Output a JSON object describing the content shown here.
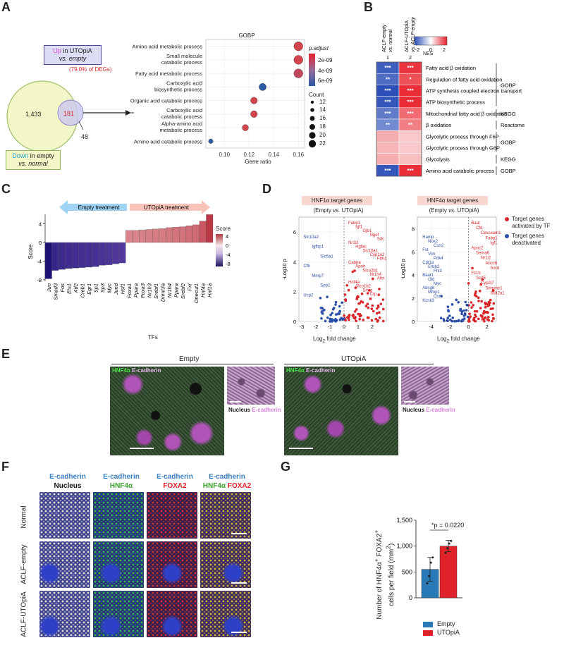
{
  "panel_labels": [
    "A",
    "B",
    "C",
    "D",
    "E",
    "F",
    "G"
  ],
  "panelA": {
    "venn_up_title": "Up in UTOpiA",
    "venn_up_sub": "vs. empty",
    "venn_up_prefix": "Up",
    "venn_up_rest": " in UTOpiA",
    "venn_pct": "(79.0% of DEGs)",
    "venn_left": "1,433",
    "venn_mid": "181",
    "venn_right": "48",
    "venn_down_prefix": "Down",
    "venn_down_rest": " in empty",
    "venn_down_sub": "vs. normal",
    "gobp_title": "GOBP",
    "xlabel": "Gene ratio",
    "legend_padj_title": "p.adjust",
    "legend_padj_ticks": [
      "2e-09",
      "4e-09",
      "6e-09"
    ],
    "legend_count_title": "Count",
    "legend_count_vals": [
      "12",
      "14",
      "16",
      "18",
      "20",
      "22"
    ]
  },
  "chart_data": [
    {
      "type": "scatter",
      "title": "GOBP",
      "xlabel": "Gene ratio",
      "xlim": [
        0.085,
        0.165
      ],
      "xticks": [
        "0.10",
        "0.12",
        "0.14",
        "0.16"
      ],
      "categories": [
        "Amino acid metabolic process",
        "Small molecule catabolic process",
        "Fatty acid metabolic process",
        "Carboxylic acid biosynthetic process",
        "Organic acid catabolic process",
        "Carboxylic acid catabolic process",
        "Alpha-amino acid metabolic process",
        "Amino acid catabolic process"
      ],
      "x": [
        0.16,
        0.16,
        0.16,
        0.131,
        0.124,
        0.124,
        0.117,
        0.089
      ],
      "count": [
        22,
        22,
        22,
        18,
        17,
        17,
        16,
        12
      ],
      "p_adjust": [
        "low",
        "low",
        "mid",
        "high",
        "low",
        "low",
        "low",
        "high"
      ]
    },
    {
      "type": "heatmap",
      "title": "NES",
      "columns": [
        "ACLF-empty vs. normal",
        "ACLF-UTOpiA vs. ACLF-empty"
      ],
      "column_index": [
        "1",
        "2"
      ],
      "rows": [
        "Fatty acid β oxidation",
        "Regulation of fatty acid oxidation",
        "ATP synthesis coupled electron transport",
        "ATP biosynthetic process",
        "Mitochondrial fatty acid β oxidation",
        "β oxidation",
        "Glycolytic process through F6P",
        "Glycolytic process through G6P",
        "Glycolysis",
        "Amino acid catabolic process"
      ],
      "values": [
        [
          -2.2,
          2.2
        ],
        [
          -2.0,
          1.9
        ],
        [
          -2.4,
          2.3
        ],
        [
          -2.3,
          2.3
        ],
        [
          -1.8,
          1.6
        ],
        [
          -1.6,
          1.4
        ],
        [
          0.9,
          0.6
        ],
        [
          0.8,
          0.6
        ],
        [
          0.9,
          0.7
        ],
        [
          -2.3,
          2.3
        ]
      ],
      "stars": [
        [
          "***",
          "***"
        ],
        [
          "**",
          "*"
        ],
        [
          "***",
          "***"
        ],
        [
          "***",
          "***"
        ],
        [
          "***",
          "***"
        ],
        [
          "**",
          "**"
        ],
        [
          "",
          ""
        ],
        [
          "",
          ""
        ],
        [
          "",
          ""
        ],
        [
          "***",
          "***"
        ]
      ],
      "legend_range": [
        -2,
        2
      ],
      "legend_ticks": [
        "-2",
        "0",
        "2"
      ],
      "groups": [
        {
          "label": "GOBP",
          "from": 0,
          "to": 3
        },
        {
          "label": "KEGG",
          "from": 4,
          "to": 4
        },
        {
          "label": "Reactome",
          "from": 5,
          "to": 5
        },
        {
          "label": "GOBP",
          "from": 6,
          "to": 7
        },
        {
          "label": "KEGG",
          "from": 8,
          "to": 8
        },
        {
          "label": "GOBP",
          "from": 9,
          "to": 9
        }
      ]
    },
    {
      "type": "bar",
      "xlabel": "TFs",
      "ylabel": "Score",
      "ylim": [
        -8,
        6
      ],
      "yticks": [
        "4",
        "0",
        "-4",
        "-8"
      ],
      "categories": [
        "Jun",
        "Smad3",
        "Fos",
        "Ets1",
        "Atf2",
        "Creb1",
        "Egr1",
        "Sp1",
        "Sp3",
        "Myc",
        "Jund",
        "Hsf1",
        "Foxa1",
        "Ppara",
        "Foxa3",
        "Nr1h3",
        "Srebf1",
        "Dnmt3a",
        "Nr1h4",
        "Ppara",
        "Srebf2",
        "Fxr",
        "Onecut1",
        "Hnf4a",
        "Hnf1a"
      ],
      "values": [
        -7.8,
        -6.0,
        -5.8,
        -5.6,
        -5.5,
        -5.4,
        -5.3,
        -5.2,
        -4.9,
        -4.8,
        -4.6,
        -4.4,
        2.6,
        2.6,
        2.7,
        2.8,
        2.9,
        3.0,
        3.2,
        3.3,
        3.4,
        3.6,
        3.8,
        4.6,
        6.0
      ],
      "legend_title": "Score",
      "legend_ticks": [
        "4",
        "0",
        "-4",
        "-8"
      ],
      "arrow_left": "Empty treatment",
      "arrow_right": "UTOpiA treatment"
    },
    {
      "type": "bar",
      "title": "",
      "categories": [
        "Empty",
        "UTOpiA"
      ],
      "values": [
        550,
        1000
      ],
      "errors": [
        230,
        110
      ],
      "points": [
        [
          280,
          420,
          680,
          780
        ],
        [
          870,
          960,
          1050,
          1100
        ]
      ],
      "ylabel": "Number of HNF4α+ FOXA2+ cells per field (mm²)",
      "ylim": [
        0,
        1500
      ],
      "yticks": [
        "0",
        "500",
        "1,000",
        "1,500"
      ],
      "pvalue": "*p = 0.0220",
      "legend": [
        "Empty",
        "UTOpiA"
      ],
      "colors": [
        "#2a7ab8",
        "#e0222b"
      ]
    }
  ],
  "panelD": {
    "left_title": "HNF1α target genes",
    "left_sub": "(Empty vs. UTOpiA)",
    "right_title": "HNF4α target genes",
    "right_sub": "(Empty vs. UTOpiA)",
    "xlabel": "Log2 fold change",
    "ylabel": "-Log10 p",
    "left_xticks": [
      "-3",
      "-2",
      "-1",
      "0",
      "1",
      "2"
    ],
    "left_yticks": [
      "0",
      "2",
      "4",
      "6"
    ],
    "right_xticks": [
      "-4",
      "-2",
      "0",
      "2"
    ],
    "right_yticks": [
      "0",
      "2",
      "4",
      "6",
      "8"
    ],
    "legend_up": "Target genes activated by TF",
    "legend_down": "Target genes deactivated",
    "left_red_genes": [
      "Fabp1",
      "Igf1",
      "Gjb1",
      "Ngef",
      "Sdc",
      "Nr1i2",
      "Hgfac",
      "Slc10a1",
      "Cyp1a2",
      "Fbn1",
      "Cabpa",
      "Apoh",
      "Slco2b1",
      "Nr1h4",
      "Afm",
      "Hnf4a",
      "Slco1b2",
      "Sncg",
      "Crp"
    ],
    "left_blue_genes": [
      "Slc10a2",
      "Igfbp1",
      "Slc5a1",
      "Cfb",
      "Mmp7",
      "Spp1",
      "Ucp2"
    ],
    "right_red_genes": [
      "Baat",
      "Cfd",
      "Cesceam1",
      "Fabp1",
      "Igf1",
      "Apoc2",
      "Sema6",
      "Nr1i2",
      "Abcc6",
      "Sord",
      "F11b",
      "Scd5",
      "Cyp2j7",
      "Serpine1",
      "Sult2a1"
    ],
    "right_blue_genes": [
      "Hamp",
      "Nox2",
      "Csn2",
      "Fst",
      "Vim",
      "Pdk4",
      "Cpt1a",
      "Erbb2",
      "Fhl3",
      "Baat1",
      "Gld",
      "Myc",
      "Abcg8",
      "Mmp1",
      "Osm",
      "Kcnk3"
    ]
  },
  "panelE": {
    "left_title": "Empty",
    "right_title": "UTOpiA",
    "stain_a": "HNF4α",
    "stain_b": "E-cadherin",
    "inset_a": "Nucleus",
    "inset_b": "E-cadherin"
  },
  "panelF": {
    "col1_top": "E-cadherin",
    "col1_bot": "Nucleus",
    "col2_top": "E-cadherin",
    "col2_bot": "HNF4α",
    "col3_top": "E-cadherin",
    "col3_bot": "FOXA2",
    "col4_top": "E-cadherin",
    "col4_bot_a": "HNF4α",
    "col4_bot_b": "FOXA2",
    "rows": [
      "Normal",
      "ACLF-empty",
      "ACLF-UTOpiA"
    ]
  },
  "colors": {
    "venn_green": "#f3f6c6",
    "venn_blue": "#c9c8ef",
    "heat_red": "#e8232c",
    "heat_blue": "#2c4fb7",
    "red_dot": "#d9262b",
    "blue_dot": "#2b4ea8",
    "bar_empty": "#2a7ab8",
    "bar_utopia": "#e0222b",
    "arrow_blue": "#9fd2f3",
    "arrow_red": "#f8c3b8"
  }
}
